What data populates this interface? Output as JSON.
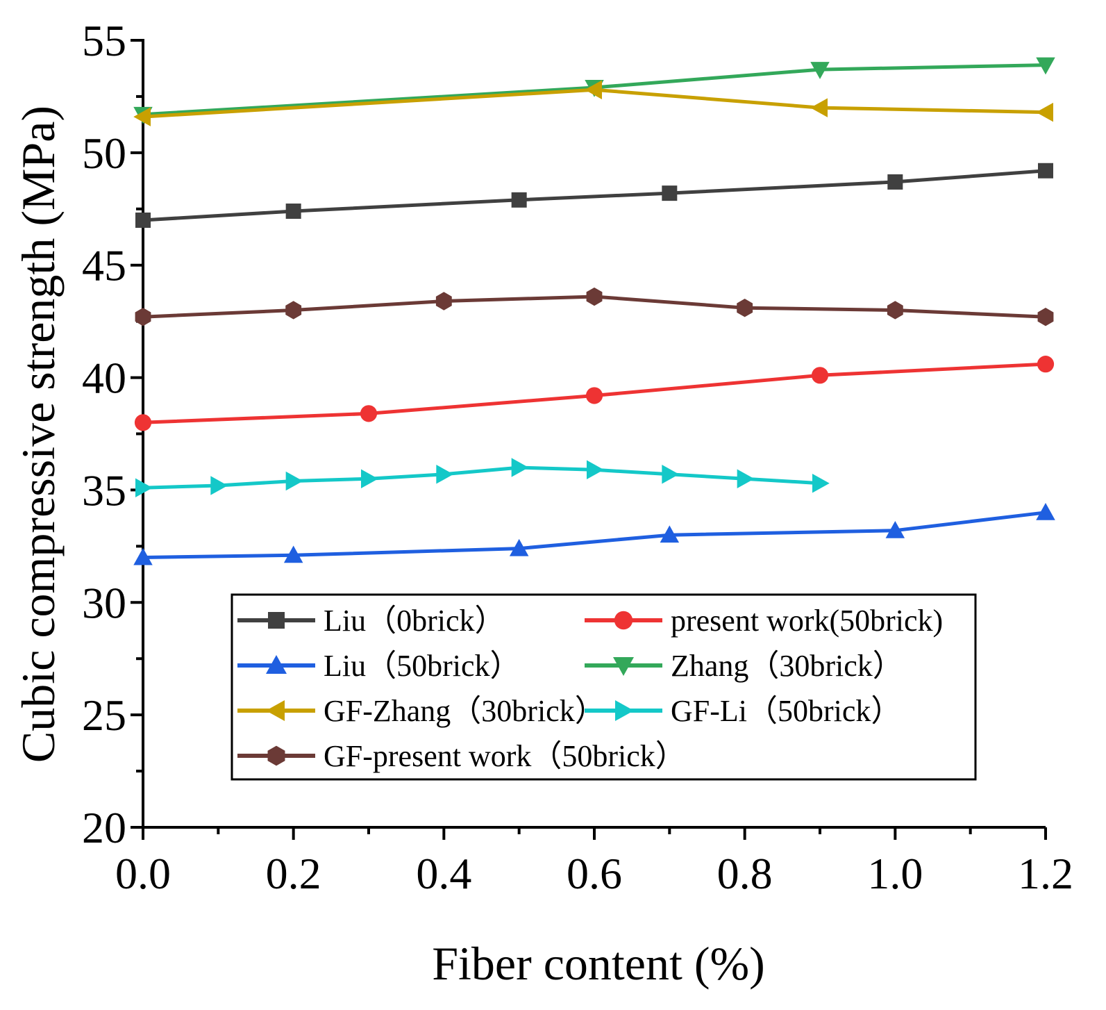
{
  "chart_data": {
    "type": "line",
    "title": "",
    "xlabel": "Fiber content (%)",
    "ylabel": "Cubic compressive strength (MPa)",
    "xlim": [
      0.0,
      1.2
    ],
    "ylim": [
      20,
      55
    ],
    "x_ticks": [
      "0.0",
      "0.2",
      "0.4",
      "0.6",
      "0.8",
      "1.0",
      "1.2"
    ],
    "y_ticks": [
      "20",
      "25",
      "30",
      "35",
      "40",
      "45",
      "50",
      "55"
    ],
    "grid": false,
    "legend_position": "bottom-center",
    "series": [
      {
        "name": "Liu（0brick）",
        "color": "#404040",
        "marker": "square",
        "x": [
          0,
          0.2,
          0.5,
          0.7,
          1.0,
          1.2
        ],
        "y": [
          47.0,
          47.4,
          47.9,
          48.2,
          48.7,
          49.2
        ]
      },
      {
        "name": "present work(50brick)",
        "color": "#ee3333",
        "marker": "circle",
        "x": [
          0,
          0.3,
          0.6,
          0.9,
          1.2
        ],
        "y": [
          38.0,
          38.4,
          39.2,
          40.1,
          40.6
        ]
      },
      {
        "name": "Liu（50brick）",
        "color": "#1f5fe0",
        "marker": "triangle-up",
        "x": [
          0,
          0.2,
          0.5,
          0.7,
          1.0,
          1.2
        ],
        "y": [
          32.0,
          32.1,
          32.4,
          33.0,
          33.2,
          34.0
        ]
      },
      {
        "name": "Zhang（30brick）",
        "color": "#33a85a",
        "marker": "triangle-down",
        "x": [
          0,
          0.6,
          0.9,
          1.2
        ],
        "y": [
          51.7,
          52.9,
          53.7,
          53.9
        ]
      },
      {
        "name": "GF-Zhang（30brick）",
        "color": "#c8a000",
        "marker": "triangle-left",
        "x": [
          0,
          0.6,
          0.9,
          1.2
        ],
        "y": [
          51.6,
          52.8,
          52.0,
          51.8
        ]
      },
      {
        "name": "GF-Li（50brick）",
        "color": "#14c8c8",
        "marker": "triangle-right",
        "x": [
          0,
          0.1,
          0.2,
          0.3,
          0.4,
          0.5,
          0.6,
          0.7,
          0.8,
          0.9
        ],
        "y": [
          35.1,
          35.2,
          35.4,
          35.5,
          35.7,
          36.0,
          35.9,
          35.7,
          35.5,
          35.3
        ]
      },
      {
        "name": "GF-present work（50brick）",
        "color": "#6b3a36",
        "marker": "hexagon",
        "x": [
          0,
          0.2,
          0.4,
          0.6,
          0.8,
          1.0,
          1.2
        ],
        "y": [
          42.7,
          43.0,
          43.4,
          43.6,
          43.1,
          43.0,
          42.7
        ]
      }
    ]
  }
}
